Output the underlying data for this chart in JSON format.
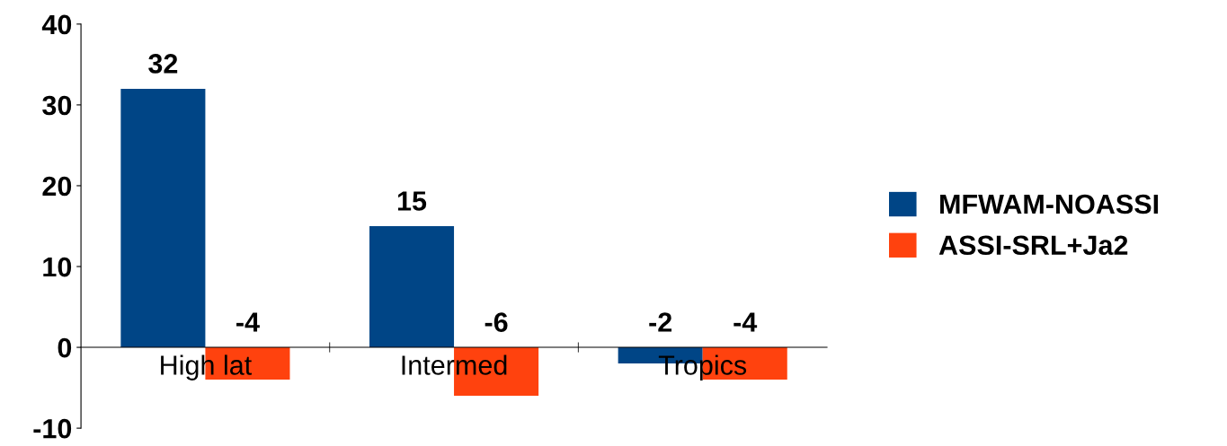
{
  "chart_data": {
    "type": "bar",
    "categories": [
      "High lat",
      "Intermed",
      "Tropics"
    ],
    "series": [
      {
        "name": "MFWAM-NOASSI",
        "color": "#004586",
        "values": [
          32,
          15,
          -2
        ]
      },
      {
        "name": "ASSI-SRL+Ja2",
        "color": "#ff420e",
        "values": [
          -4,
          -6,
          -4
        ]
      }
    ],
    "ylim": [
      -10,
      40
    ],
    "yticks": [
      -10,
      0,
      10,
      20,
      30,
      40
    ],
    "data_labels": true,
    "legend": "right",
    "grid": false
  }
}
